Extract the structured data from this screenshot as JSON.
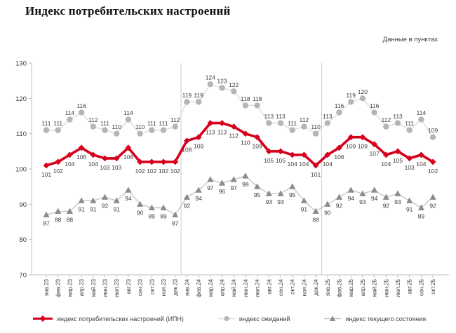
{
  "title": "Индекс потребительских настроений",
  "subtitle": "Данные в пунктах",
  "colors": {
    "value_label": "#3c3c3c",
    "tick_label": "#404040",
    "axis": "#bfbfbf",
    "separator": "#cccccc"
  },
  "chart_data": {
    "type": "line",
    "title": "Индекс потребительских настроений",
    "units_note": "Данные в пунктах",
    "ylim": [
      70,
      130
    ],
    "yticks": [
      70,
      80,
      90,
      100,
      110,
      120,
      130
    ],
    "grid": false,
    "legend_position": "bottom",
    "data_labels": true,
    "separators_after": [
      "дек.23",
      "дек.24"
    ],
    "categories": [
      "янв.23",
      "фев.23",
      "мар.23",
      "апр.23",
      "май.23",
      "июн.23",
      "июл.23",
      "авг.23",
      "сен.23",
      "окт.23",
      "ноя.23",
      "дек.23",
      "янв.24",
      "фев.24",
      "мар.24",
      "апр.24",
      "май.24",
      "июн.24",
      "июл.24",
      "авг.24",
      "сен.24",
      "окт.24",
      "ноя.24",
      "дек.24",
      "янв.25",
      "фев.25",
      "мар.25",
      "апр.25",
      "май.25",
      "июн.25",
      "июл.25",
      "авг.25",
      "сен.25",
      "окт.25"
    ],
    "series": [
      {
        "id": "ipn",
        "name": "индекс потребительских настроений (ИПН)",
        "marker": "diamond",
        "line_color": "#d6001c",
        "marker_color": "#d6001c",
        "line_width": 3.6,
        "values": [
          101,
          102,
          104,
          106,
          104,
          103,
          103,
          106,
          102,
          102,
          102,
          102,
          108,
          109,
          113,
          113,
          112,
          110,
          109,
          105,
          105,
          104,
          104,
          101,
          104,
          106,
          109,
          109,
          107,
          104,
          105,
          103,
          104,
          102
        ]
      },
      {
        "id": "expectations",
        "name": "индекс ожиданий",
        "marker": "circle",
        "line_color": "#dcdcdc",
        "marker_color": "#b5b5b5",
        "line_width": 1.4,
        "values": [
          111,
          111,
          114,
          116,
          112,
          111,
          110,
          114,
          110,
          111,
          111,
          112,
          119,
          119,
          124,
          123,
          122,
          118,
          118,
          113,
          113,
          111,
          112,
          110,
          113,
          116,
          119,
          120,
          116,
          112,
          113,
          111,
          114,
          109
        ]
      },
      {
        "id": "current",
        "name": "индекс текущего состояния",
        "marker": "triangle",
        "line_color": "#c6c6c6",
        "marker_color": "#8c8c8c",
        "line_width": 1.4,
        "values": [
          87,
          88,
          88,
          91,
          91,
          92,
          91,
          94,
          90,
          89,
          89,
          87,
          92,
          94,
          97,
          96,
          97,
          98,
          95,
          93,
          93,
          95,
          91,
          88,
          90,
          92,
          94,
          93,
          94,
          92,
          93,
          91,
          89,
          92
        ]
      }
    ]
  }
}
